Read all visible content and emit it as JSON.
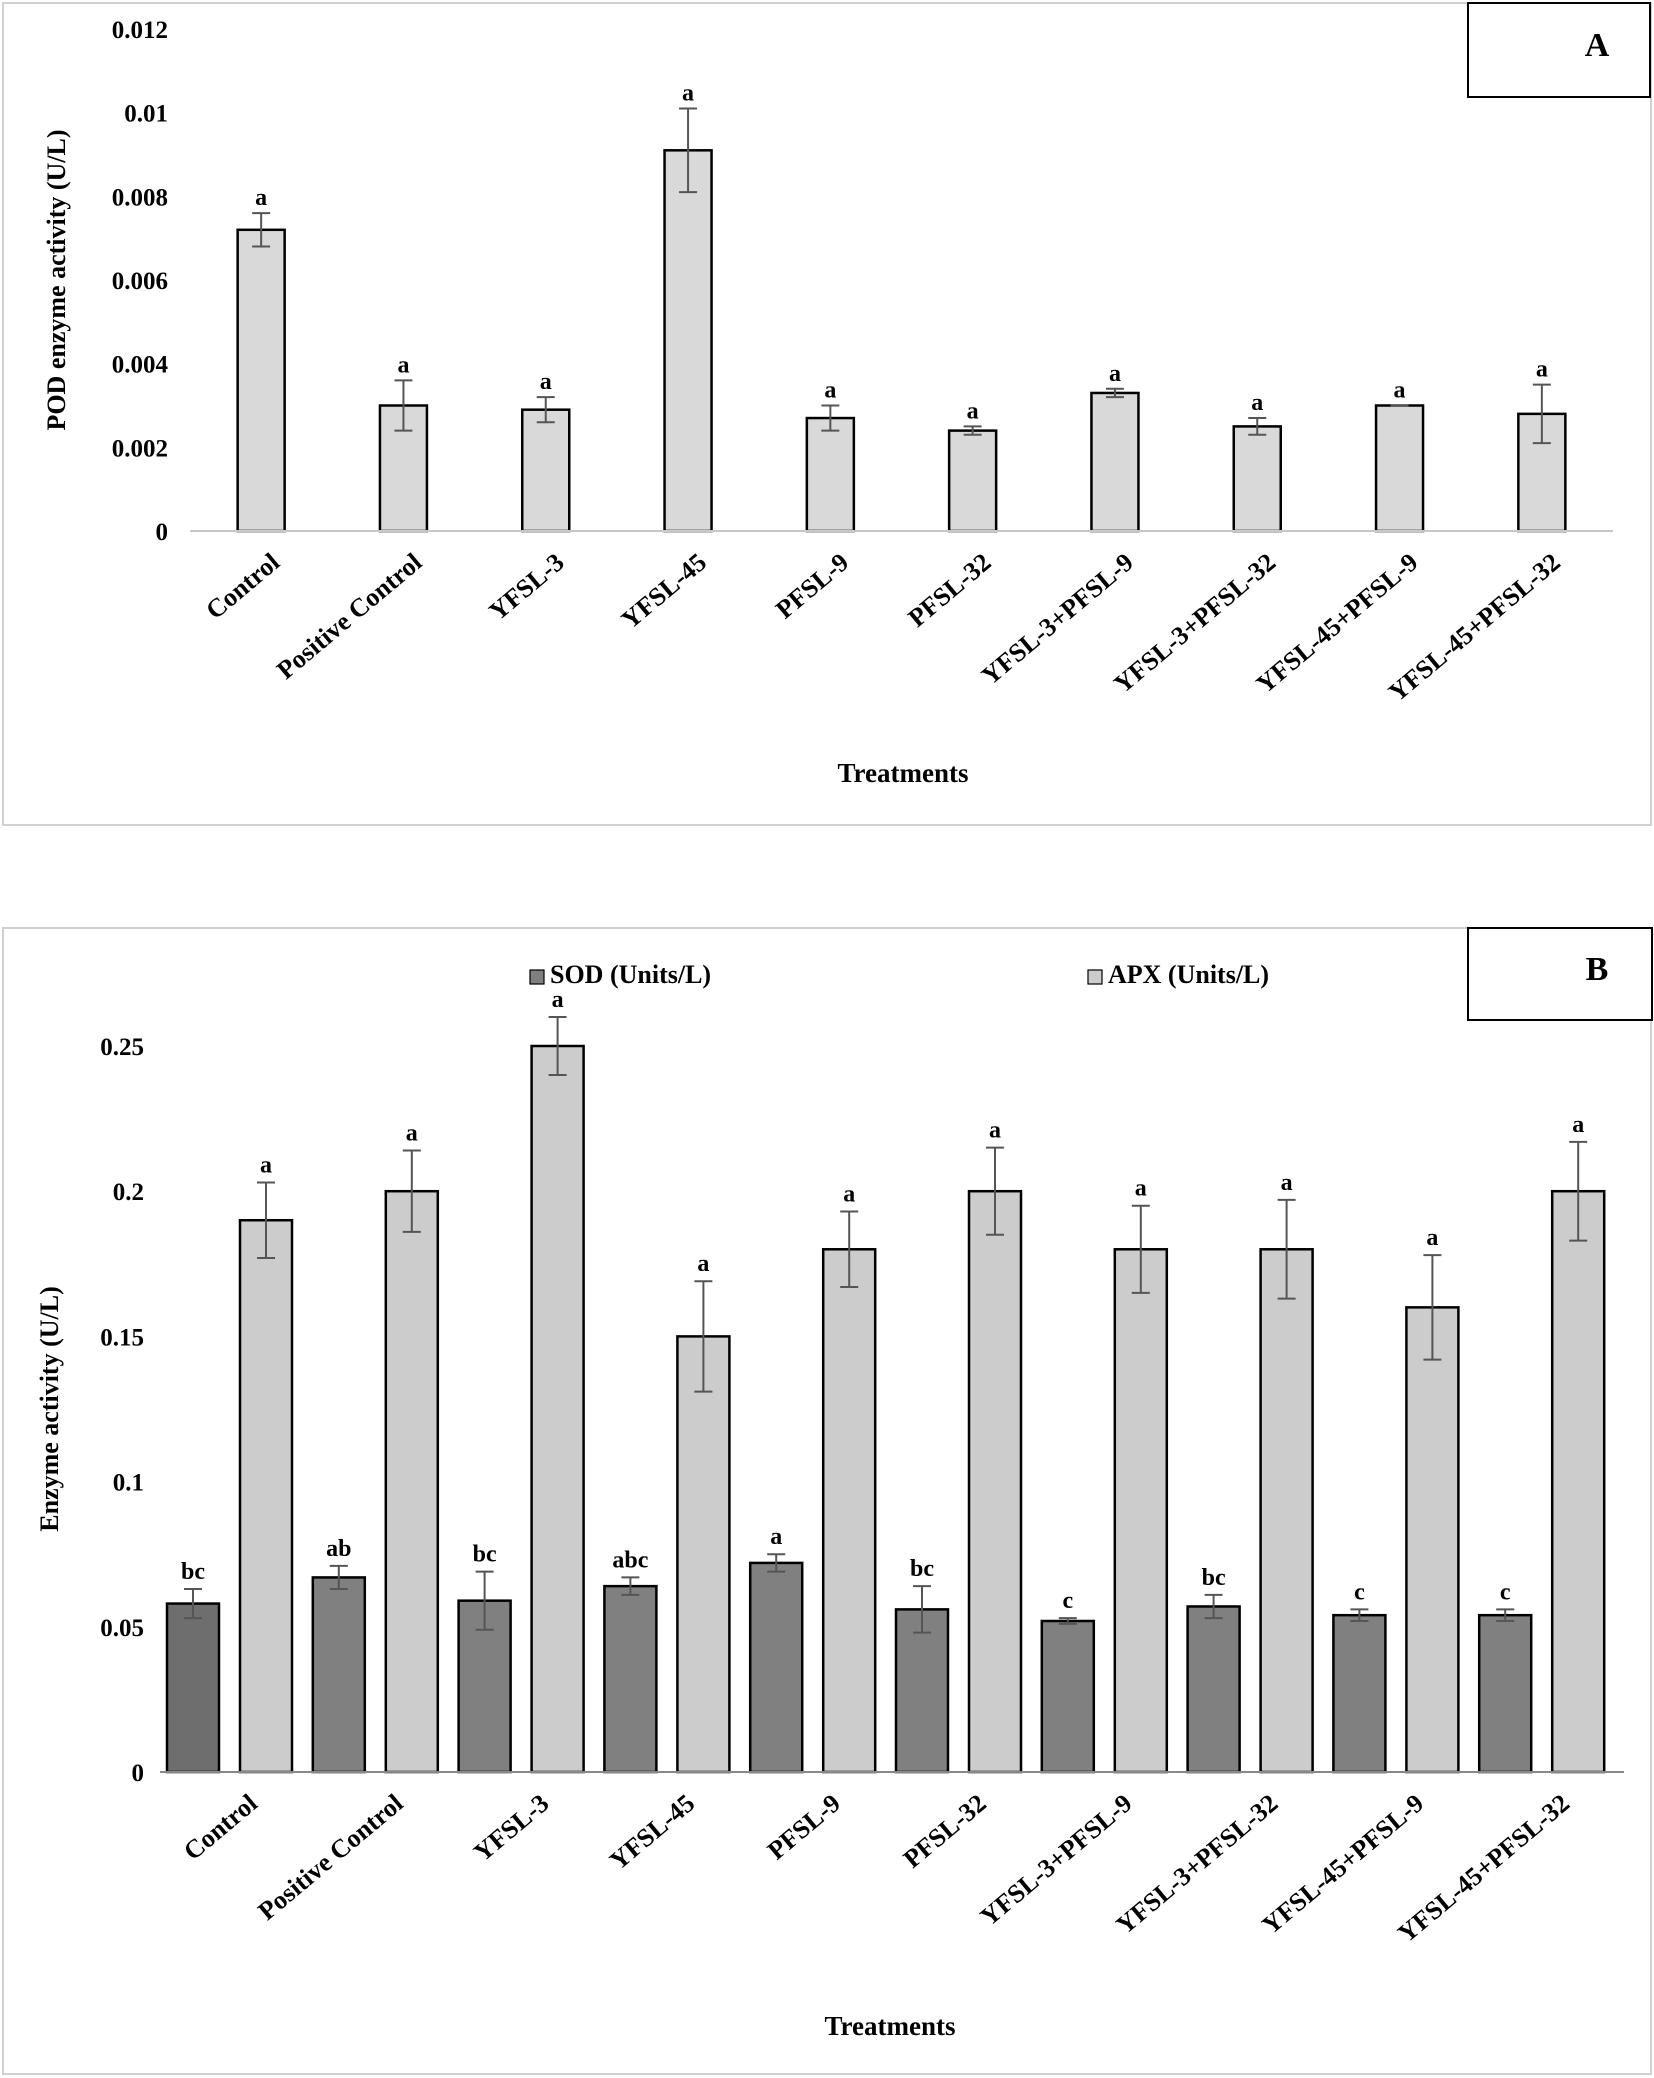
{
  "chart_data": [
    {
      "type": "bar",
      "panel_label": "A",
      "title": "",
      "xlabel": "Treatments",
      "ylabel": "POD enzyme activity (U/L)",
      "ylim": [
        0,
        0.012
      ],
      "yticks": [
        0,
        0.002,
        0.004,
        0.006,
        0.008,
        0.01,
        0.012
      ],
      "ytick_labels": [
        "0",
        "0.002",
        "0.004",
        "0.006",
        "0.008",
        "0.01",
        "0.012"
      ],
      "grid": false,
      "categories": [
        "Control",
        "Positive Control",
        "YFSL-3",
        "YFSL-45",
        "PFSL-9",
        "PFSL-32",
        "YFSL-3+PFSL-9",
        "YFSL-3+PFSL-32",
        "YFSL-45+PFSL-9",
        "YFSL-45+PFSL-32"
      ],
      "series": [
        {
          "name": "POD",
          "color": "#d9d9d9",
          "values": [
            0.0072,
            0.003,
            0.0029,
            0.0091,
            0.0027,
            0.0024,
            0.0033,
            0.0025,
            0.003,
            0.0028
          ],
          "errors": [
            0.0004,
            0.0006,
            0.0003,
            0.001,
            0.0003,
            0.0001,
            0.0001,
            0.0002,
            0.0,
            0.0007
          ],
          "letters": [
            "a",
            "a",
            "a",
            "a",
            "a",
            "a",
            "a",
            "a",
            "a",
            "a"
          ]
        }
      ]
    },
    {
      "type": "bar",
      "panel_label": "B",
      "title": "",
      "xlabel": "Treatments",
      "ylabel": "Enzyme activity (U/L)",
      "ylim": [
        0,
        0.25
      ],
      "yticks": [
        0,
        0.05,
        0.1,
        0.15,
        0.2,
        0.25
      ],
      "ytick_labels": [
        "0",
        "0.05",
        "0.1",
        "0.15",
        "0.2",
        "0.25"
      ],
      "grid": false,
      "legend": "top",
      "categories": [
        "Control",
        "Positive Control",
        "YFSL-3",
        "YFSL-45",
        "PFSL-9",
        "PFSL-32",
        "YFSL-3+PFSL-9",
        "YFSL-3+PFSL-32",
        "YFSL-45+PFSL-9",
        "YFSL-45+PFSL-32"
      ],
      "series": [
        {
          "name": "SOD (Units/L)",
          "color": "#808080",
          "first_bar_color": "#6e6e6e",
          "values": [
            0.058,
            0.067,
            0.059,
            0.064,
            0.072,
            0.056,
            0.052,
            0.057,
            0.054,
            0.054
          ],
          "errors": [
            0.005,
            0.004,
            0.01,
            0.003,
            0.003,
            0.008,
            0.001,
            0.004,
            0.002,
            0.002
          ],
          "letters": [
            "bc",
            "ab",
            "bc",
            "abc",
            "a",
            "bc",
            "c",
            "bc",
            "c",
            "c"
          ]
        },
        {
          "name": "APX (Units/L)",
          "color": "#cccccc",
          "values": [
            0.19,
            0.2,
            0.25,
            0.15,
            0.18,
            0.2,
            0.18,
            0.18,
            0.16,
            0.2
          ],
          "errors": [
            0.013,
            0.014,
            0.01,
            0.019,
            0.013,
            0.015,
            0.015,
            0.017,
            0.018,
            0.017
          ],
          "letters": [
            "a",
            "a",
            "a",
            "a",
            "a",
            "a",
            "a",
            "a",
            "a",
            "a"
          ]
        }
      ]
    }
  ]
}
